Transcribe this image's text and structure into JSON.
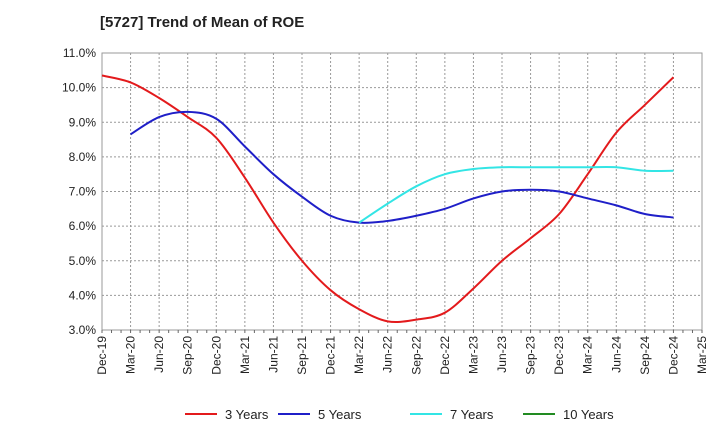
{
  "chart_data": {
    "type": "line",
    "title": "[5727]  Trend of Mean of ROE",
    "xlabel": "",
    "ylabel": "",
    "ylim": [
      3.0,
      11.0
    ],
    "y_ticks": [
      "3.0%",
      "4.0%",
      "5.0%",
      "6.0%",
      "7.0%",
      "8.0%",
      "9.0%",
      "10.0%",
      "11.0%"
    ],
    "x_ticks": [
      "Dec-19",
      "Mar-20",
      "Jun-20",
      "Sep-20",
      "Dec-20",
      "Mar-21",
      "Jun-21",
      "Sep-21",
      "Dec-21",
      "Mar-22",
      "Jun-22",
      "Sep-22",
      "Dec-22",
      "Mar-23",
      "Jun-23",
      "Sep-23",
      "Dec-23",
      "Mar-24",
      "Jun-24",
      "Sep-24",
      "Dec-24",
      "Mar-25"
    ],
    "grid": true,
    "legend_position": "bottom",
    "series": [
      {
        "name": "3 Years",
        "color": "#e31a1c",
        "x": [
          "Dec-19",
          "Mar-20",
          "Jun-20",
          "Sep-20",
          "Dec-20",
          "Mar-21",
          "Jun-21",
          "Sep-21",
          "Dec-21",
          "Mar-22",
          "Jun-22",
          "Sep-22",
          "Dec-22",
          "Mar-23",
          "Jun-23",
          "Sep-23",
          "Dec-23",
          "Mar-24",
          "Jun-24",
          "Sep-24",
          "Dec-24"
        ],
        "values": [
          10.35,
          10.15,
          9.7,
          9.15,
          8.55,
          7.4,
          6.1,
          5.0,
          4.15,
          3.6,
          3.25,
          3.3,
          3.5,
          4.2,
          5.0,
          5.65,
          6.35,
          7.5,
          8.7,
          9.5,
          10.3
        ]
      },
      {
        "name": "5 Years",
        "color": "#1f1fc8",
        "x": [
          "Mar-20",
          "Jun-20",
          "Sep-20",
          "Dec-20",
          "Mar-21",
          "Jun-21",
          "Sep-21",
          "Dec-21",
          "Mar-22",
          "Jun-22",
          "Sep-22",
          "Dec-22",
          "Mar-23",
          "Jun-23",
          "Sep-23",
          "Dec-23",
          "Mar-24",
          "Jun-24",
          "Sep-24",
          "Dec-24"
        ],
        "values": [
          8.65,
          9.15,
          9.3,
          9.1,
          8.3,
          7.5,
          6.85,
          6.3,
          6.1,
          6.15,
          6.3,
          6.5,
          6.8,
          7.0,
          7.05,
          7.0,
          6.8,
          6.6,
          6.35,
          6.25
        ]
      },
      {
        "name": "7 Years",
        "color": "#33e5e5",
        "x": [
          "Mar-22",
          "Jun-22",
          "Sep-22",
          "Dec-22",
          "Mar-23",
          "Jun-23",
          "Sep-23",
          "Dec-23",
          "Mar-24",
          "Jun-24",
          "Sep-24",
          "Dec-24"
        ],
        "values": [
          6.1,
          6.65,
          7.15,
          7.5,
          7.65,
          7.7,
          7.7,
          7.7,
          7.7,
          7.7,
          7.6,
          7.6
        ]
      },
      {
        "name": "10 Years",
        "color": "#228b22",
        "x": [],
        "values": []
      }
    ]
  }
}
